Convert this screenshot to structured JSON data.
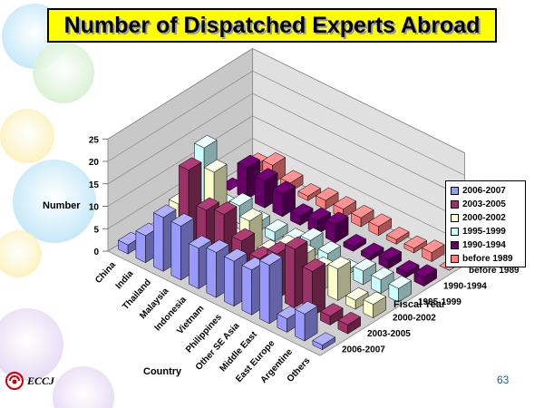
{
  "slide": {
    "title": "Number of Dispatched Experts Abroad",
    "page_number": "63",
    "logo_text": "ECCJ"
  },
  "chart_data": {
    "type": "bar",
    "subtype": "3d-column",
    "categories": [
      "China",
      "India",
      "Thailand",
      "Malaysia",
      "Indonesia",
      "Vietnam",
      "Philippines",
      "Other SE Asia",
      "Middle East",
      "East Europe",
      "Argentine",
      "Others"
    ],
    "series": [
      {
        "name": "2006-2007",
        "color": "#9999ff",
        "values": [
          2,
          6,
          12,
          12,
          9,
          10,
          10,
          10,
          13,
          3,
          6,
          1
        ]
      },
      {
        "name": "2003-2005",
        "color": "#993366",
        "values": [
          0,
          3,
          19,
          12,
          13,
          9,
          7,
          10,
          13,
          10,
          2,
          2
        ]
      },
      {
        "name": "2000-2002",
        "color": "#ffffcc",
        "values": [
          4,
          1,
          15,
          2,
          8,
          3,
          6,
          6,
          5,
          7,
          2,
          3
        ]
      },
      {
        "name": "1995-1999",
        "color": "#ccffff",
        "values": [
          13,
          2,
          4,
          2,
          2,
          2,
          4,
          3,
          1,
          3,
          3,
          3
        ]
      },
      {
        "name": "1990-1994",
        "color": "#660066",
        "values": [
          0,
          7,
          6,
          5,
          2,
          3,
          4,
          1,
          1,
          2,
          1,
          2
        ]
      },
      {
        "name": "before 1989",
        "color": "#ff8080",
        "values": [
          2,
          4,
          2,
          1,
          2,
          2,
          2,
          2,
          1,
          1,
          2,
          0
        ]
      }
    ],
    "depth_axis_labels": [
      "before 1989",
      "1990-1994",
      "1995-1999",
      "2000-2002",
      "2003-2005",
      "2006-2007"
    ],
    "xlabel": "Country",
    "ylabel": "Number",
    "zlabel": "Fiscal Year",
    "yticks": [
      "0",
      "5",
      "10",
      "15",
      "20",
      "25"
    ],
    "ylim": [
      0,
      25
    ],
    "legend_position": "right",
    "grid": true
  }
}
